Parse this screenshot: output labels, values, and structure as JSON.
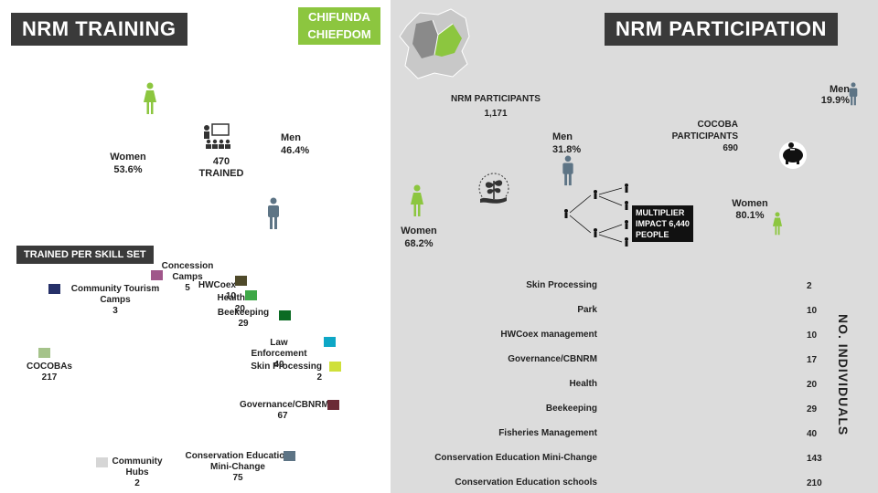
{
  "left_panel": {
    "title": "NRM TRAINING",
    "location_tag_line1": "CHIFUNDA",
    "location_tag_line2": "CHIEFDOM",
    "donut": {
      "center_value": "470",
      "center_label": "TRAINED",
      "women_label": "Women",
      "women_pct": "53.6%",
      "men_label": "Men",
      "men_pct": "46.4%"
    },
    "skill_title": "TRAINED PER SKILL SET"
  },
  "right_panel": {
    "title": "NRM PARTICIPATION",
    "participants_label": "NRM PARTICIPANTS",
    "participants_value": "1,171",
    "women_label": "Women",
    "women_pct": "68.2%",
    "men_label": "Men",
    "men_pct": "31.8%",
    "multiplier_line1": "MULTIPLIER",
    "multiplier_line2": "IMPACT 6,440",
    "multiplier_line3": "PEOPLE",
    "cocoba_label_line1": "COCOBA",
    "cocoba_label_line2": "PARTICIPANTS",
    "cocoba_value": "690",
    "cocoba_men_label": "Men",
    "cocoba_men_pct": "19.9%",
    "cocoba_women_label": "Women",
    "cocoba_women_pct": "80.1%",
    "funnel_axis_label": "NO. INDIVIDUALS"
  },
  "colors": {
    "green": "#8cc63f",
    "slate": "#5d7485",
    "dark_header": "#3a3a3a"
  },
  "chart_data": [
    {
      "type": "pie",
      "id": "training-gender",
      "categories": [
        "Women",
        "Men"
      ],
      "values": [
        53.6,
        46.4
      ],
      "colors": [
        "#8cc63f",
        "#5d7485"
      ]
    },
    {
      "type": "pie",
      "id": "trained-per-skill",
      "title": "TRAINED PER SKILL SET",
      "categories": [
        "Concession Camps",
        "HWCoex",
        "Health",
        "Beekeeping",
        "Law Enforcement",
        "Skin Processing",
        "Governance/CBNRM",
        "Conservation Education Mini-Change",
        "Community Hubs",
        "COCOBAs",
        "Community Tourism Camps"
      ],
      "values": [
        5,
        10,
        20,
        29,
        40,
        2,
        67,
        75,
        2,
        217,
        3
      ],
      "colors": [
        "#a0568a",
        "#4f4a2a",
        "#3ea847",
        "#0b6b23",
        "#0ea7c6",
        "#cfe03a",
        "#6b2a36",
        "#5d7485",
        "#d6d6d6",
        "#a5c38a",
        "#253068"
      ]
    },
    {
      "type": "pie",
      "id": "participation-gender",
      "categories": [
        "Women",
        "Men"
      ],
      "values": [
        68.2,
        31.8
      ],
      "colors": [
        "#8cc63f",
        "#5d7485"
      ]
    },
    {
      "type": "pie",
      "id": "cocoba-gender",
      "categories": [
        "Women",
        "Men"
      ],
      "values": [
        80.1,
        19.9
      ],
      "colors": [
        "#8cc63f",
        "#5d7485"
      ]
    },
    {
      "type": "bar",
      "id": "participation-funnel",
      "ylabel": "NO. INDIVIDUALS",
      "categories": [
        "Skin Processing",
        "Park",
        "HWCoex management",
        "Governance/CBNRM",
        "Health",
        "Beekeeping",
        "Fisheries Management",
        "Conservation Education Mini-Change",
        "Conservation Education schools"
      ],
      "values": [
        2,
        10,
        10,
        17,
        20,
        29,
        40,
        143,
        210
      ],
      "colors": [
        "#1a8a6e",
        "#3fb6d6",
        "#2d86b8",
        "#2a6aa0",
        "#244d8a",
        "#28327a",
        "#4a3a86",
        "#8a4a86",
        "#c86a8a"
      ]
    }
  ]
}
